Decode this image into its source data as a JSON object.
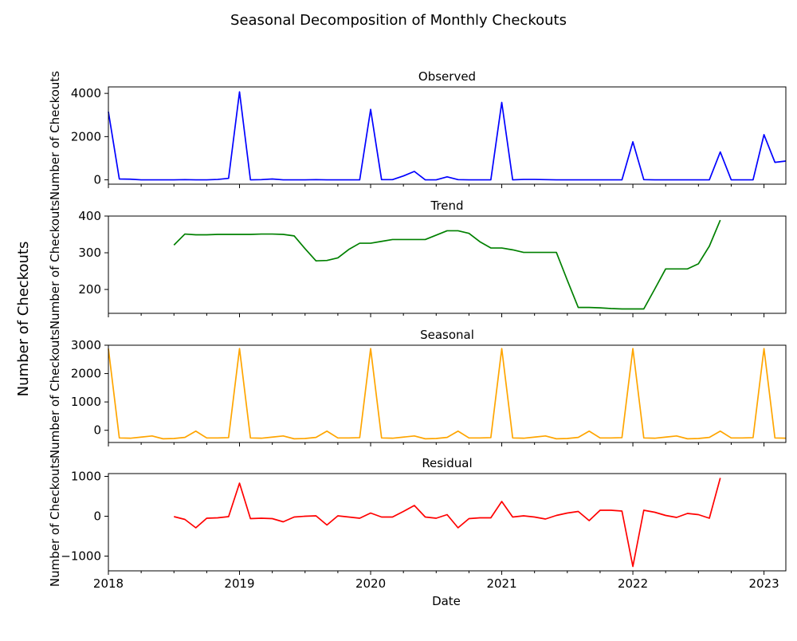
{
  "figure": {
    "title": "Seasonal Decomposition of Monthly Checkouts",
    "shared_ylabel": "Number of Checkouts",
    "xlabel": "Date"
  },
  "x_axis": {
    "start": "2018-01",
    "end": "2023-03",
    "tick_labels": [
      "2018",
      "2019",
      "2020",
      "2021",
      "2022",
      "2023"
    ]
  },
  "chart_data": [
    {
      "type": "line",
      "title": "Observed",
      "ylabel": "Number of Checkouts",
      "color": "#0000ff",
      "ylim": [
        -200,
        4300
      ],
      "yticks": [
        0,
        2000,
        4000
      ],
      "ytick_labels": [
        "0",
        "2000",
        "4000"
      ],
      "x": [
        "2018-01",
        "2018-02",
        "2018-03",
        "2018-04",
        "2018-05",
        "2018-06",
        "2018-07",
        "2018-08",
        "2018-09",
        "2018-10",
        "2018-11",
        "2018-12",
        "2019-01",
        "2019-02",
        "2019-03",
        "2019-04",
        "2019-05",
        "2019-06",
        "2019-07",
        "2019-08",
        "2019-09",
        "2019-10",
        "2019-11",
        "2019-12",
        "2020-01",
        "2020-02",
        "2020-03",
        "2020-04",
        "2020-05",
        "2020-06",
        "2020-07",
        "2020-08",
        "2020-09",
        "2020-10",
        "2020-11",
        "2020-12",
        "2021-01",
        "2021-02",
        "2021-03",
        "2021-04",
        "2021-05",
        "2021-06",
        "2021-07",
        "2021-08",
        "2021-09",
        "2021-10",
        "2021-11",
        "2021-12",
        "2022-01",
        "2022-02",
        "2022-03",
        "2022-04",
        "2022-05",
        "2022-06",
        "2022-07",
        "2022-08",
        "2022-09",
        "2022-10",
        "2022-11",
        "2022-12",
        "2023-01",
        "2023-02",
        "2023-03"
      ],
      "values": [
        3150,
        40,
        30,
        0,
        0,
        0,
        0,
        10,
        0,
        0,
        20,
        70,
        4070,
        0,
        10,
        40,
        0,
        0,
        0,
        10,
        0,
        0,
        0,
        0,
        3260,
        10,
        10,
        180,
        390,
        0,
        0,
        140,
        10,
        0,
        0,
        0,
        3580,
        0,
        20,
        20,
        10,
        0,
        0,
        0,
        0,
        0,
        0,
        0,
        1760,
        10,
        0,
        0,
        0,
        0,
        0,
        0,
        1290,
        0,
        0,
        0,
        2090,
        810,
        870
      ]
    },
    {
      "type": "line",
      "title": "Trend",
      "ylabel": "Number of Checkouts",
      "color": "#008000",
      "ylim": [
        135,
        400
      ],
      "yticks": [
        200,
        300,
        400
      ],
      "ytick_labels": [
        "200",
        "300",
        "400"
      ],
      "x": [
        "2018-07",
        "2018-08",
        "2018-09",
        "2018-10",
        "2018-11",
        "2018-12",
        "2019-01",
        "2019-02",
        "2019-03",
        "2019-04",
        "2019-05",
        "2019-06",
        "2019-07",
        "2019-08",
        "2019-09",
        "2019-10",
        "2019-11",
        "2019-12",
        "2020-01",
        "2020-02",
        "2020-03",
        "2020-04",
        "2020-05",
        "2020-06",
        "2020-07",
        "2020-08",
        "2020-09",
        "2020-10",
        "2020-11",
        "2020-12",
        "2021-01",
        "2021-02",
        "2021-03",
        "2021-04",
        "2021-05",
        "2021-06",
        "2021-07",
        "2021-08",
        "2021-09",
        "2021-10",
        "2021-11",
        "2021-12",
        "2022-01",
        "2022-02",
        "2022-03",
        "2022-04",
        "2022-05",
        "2022-06",
        "2022-07",
        "2022-08",
        "2022-09"
      ],
      "values": [
        321,
        351,
        349,
        349,
        350,
        350,
        350,
        350,
        351,
        351,
        350,
        346,
        311,
        278,
        279,
        286,
        309,
        326,
        326,
        331,
        336,
        336,
        336,
        336,
        348,
        360,
        360,
        353,
        330,
        313,
        313,
        308,
        301,
        301,
        301,
        301,
        225,
        151,
        151,
        150,
        148,
        147,
        147,
        147,
        201,
        256,
        256,
        256,
        270,
        318,
        389
      ]
    },
    {
      "type": "line",
      "title": "Seasonal",
      "ylabel": "Number of Checkouts",
      "color": "#ffa500",
      "ylim": [
        -430,
        3000
      ],
      "yticks": [
        0,
        1000,
        2000,
        3000
      ],
      "ytick_labels": [
        "0",
        "1000",
        "2000",
        "3000"
      ],
      "x": [
        "2018-01",
        "2018-02",
        "2018-03",
        "2018-04",
        "2018-05",
        "2018-06",
        "2018-07",
        "2018-08",
        "2018-09",
        "2018-10",
        "2018-11",
        "2018-12",
        "2019-01",
        "2019-02",
        "2019-03",
        "2019-04",
        "2019-05",
        "2019-06",
        "2019-07",
        "2019-08",
        "2019-09",
        "2019-10",
        "2019-11",
        "2019-12",
        "2020-01",
        "2020-02",
        "2020-03",
        "2020-04",
        "2020-05",
        "2020-06",
        "2020-07",
        "2020-08",
        "2020-09",
        "2020-10",
        "2020-11",
        "2020-12",
        "2021-01",
        "2021-02",
        "2021-03",
        "2021-04",
        "2021-05",
        "2021-06",
        "2021-07",
        "2021-08",
        "2021-09",
        "2021-10",
        "2021-11",
        "2021-12",
        "2022-01",
        "2022-02",
        "2022-03",
        "2022-04",
        "2022-05",
        "2022-06",
        "2022-07",
        "2022-08",
        "2022-09",
        "2022-10",
        "2022-11",
        "2022-12",
        "2023-01",
        "2023-02",
        "2023-03"
      ],
      "values": [
        2880,
        -270,
        -280,
        -240,
        -200,
        -300,
        -290,
        -250,
        -30,
        -270,
        -270,
        -260,
        2880,
        -270,
        -280,
        -240,
        -200,
        -300,
        -290,
        -250,
        -30,
        -270,
        -270,
        -260,
        2880,
        -270,
        -280,
        -240,
        -200,
        -300,
        -290,
        -250,
        -30,
        -270,
        -270,
        -260,
        2880,
        -270,
        -280,
        -240,
        -200,
        -300,
        -290,
        -250,
        -30,
        -270,
        -270,
        -260,
        2880,
        -270,
        -280,
        -240,
        -200,
        -300,
        -290,
        -250,
        -30,
        -270,
        -270,
        -260,
        2880,
        -270,
        -280
      ]
    },
    {
      "type": "line",
      "title": "Residual",
      "ylabel": "Number of Checkouts",
      "color": "#ff0000",
      "ylim": [
        -1370,
        1070
      ],
      "yticks": [
        -1000,
        0,
        1000
      ],
      "ytick_labels": [
        "−1000",
        "0",
        "1000"
      ],
      "x": [
        "2018-07",
        "2018-08",
        "2018-09",
        "2018-10",
        "2018-11",
        "2018-12",
        "2019-01",
        "2019-02",
        "2019-03",
        "2019-04",
        "2019-05",
        "2019-06",
        "2019-07",
        "2019-08",
        "2019-09",
        "2019-10",
        "2019-11",
        "2019-12",
        "2020-01",
        "2020-02",
        "2020-03",
        "2020-04",
        "2020-05",
        "2020-06",
        "2020-07",
        "2020-08",
        "2020-09",
        "2020-10",
        "2020-11",
        "2020-12",
        "2021-01",
        "2021-02",
        "2021-03",
        "2021-04",
        "2021-05",
        "2021-06",
        "2021-07",
        "2021-08",
        "2021-09",
        "2021-10",
        "2021-11",
        "2021-12",
        "2022-01",
        "2022-02",
        "2022-03",
        "2022-04",
        "2022-05",
        "2022-06",
        "2022-07",
        "2022-08",
        "2022-09"
      ],
      "values": [
        -10,
        -80,
        -290,
        -50,
        -40,
        -10,
        830,
        -60,
        -50,
        -60,
        -140,
        -20,
        0,
        10,
        -220,
        10,
        -20,
        -50,
        80,
        -20,
        -20,
        120,
        270,
        -20,
        -50,
        40,
        -290,
        -60,
        -40,
        -40,
        370,
        -20,
        10,
        -20,
        -70,
        20,
        80,
        120,
        -110,
        150,
        150,
        130,
        -1260,
        150,
        100,
        20,
        -30,
        70,
        40,
        -50,
        960
      ]
    }
  ]
}
